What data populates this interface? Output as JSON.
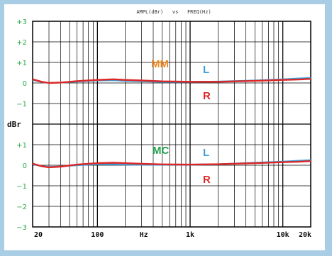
{
  "chart_data": {
    "type": "line",
    "title": "AMPL(dBr)   vs   FREQ(Hz)",
    "xlabel": "Hz",
    "ylabel": "dBr",
    "x_scale": "log",
    "xlim": [
      20,
      20000
    ],
    "x_ticks": [
      "20",
      "100",
      "Hz",
      "1k",
      "10k",
      "20k"
    ],
    "y_ticks_top": [
      "+3",
      "+2",
      "+1",
      "0",
      "−1"
    ],
    "y_ticks_bottom": [
      "+1",
      "0",
      "−1",
      "−2",
      "−3"
    ],
    "ylim_top_group": [
      -2,
      3
    ],
    "ylim_bottom_group": [
      -3,
      2
    ],
    "grid": true,
    "colors": {
      "L": "#3a9fd8",
      "R": "#dd2727",
      "mm": "#f08a24",
      "mc": "#22a050",
      "tick": "#2aa84a"
    },
    "groups": [
      {
        "name": "MM",
        "series": [
          {
            "name": "L",
            "x": [
              20,
              25,
              30,
              40,
              60,
              100,
              150,
              200,
              300,
              500,
              1000,
              2000,
              5000,
              10000,
              15000,
              20000
            ],
            "values": [
              0.15,
              0.05,
              0.0,
              0.02,
              0.07,
              0.12,
              0.13,
              0.1,
              0.08,
              0.05,
              0.05,
              0.07,
              0.12,
              0.18,
              0.22,
              0.25
            ]
          },
          {
            "name": "R",
            "x": [
              20,
              25,
              30,
              40,
              60,
              100,
              150,
              200,
              300,
              500,
              1000,
              2000,
              5000,
              10000,
              15000,
              20000
            ],
            "values": [
              0.18,
              0.06,
              0.0,
              0.02,
              0.09,
              0.15,
              0.18,
              0.15,
              0.12,
              0.08,
              0.06,
              0.06,
              0.1,
              0.15,
              0.17,
              0.2
            ]
          }
        ]
      },
      {
        "name": "MC",
        "series": [
          {
            "name": "L",
            "x": [
              20,
              25,
              30,
              40,
              60,
              100,
              150,
              200,
              300,
              500,
              1000,
              2000,
              5000,
              10000,
              15000,
              20000
            ],
            "values": [
              0.05,
              -0.05,
              -0.08,
              -0.06,
              0.0,
              0.05,
              0.05,
              0.03,
              0.02,
              0.02,
              0.03,
              0.05,
              0.12,
              0.18,
              0.22,
              0.25
            ]
          },
          {
            "name": "R",
            "x": [
              20,
              25,
              30,
              40,
              60,
              100,
              150,
              200,
              300,
              500,
              1000,
              2000,
              5000,
              10000,
              15000,
              20000
            ],
            "values": [
              0.08,
              -0.05,
              -0.1,
              -0.07,
              0.03,
              0.1,
              0.12,
              0.1,
              0.07,
              0.04,
              0.03,
              0.05,
              0.1,
              0.15,
              0.17,
              0.2
            ]
          }
        ]
      }
    ],
    "annotations": {
      "mm": "MM",
      "mc": "MC",
      "l": "L",
      "r": "R"
    }
  }
}
